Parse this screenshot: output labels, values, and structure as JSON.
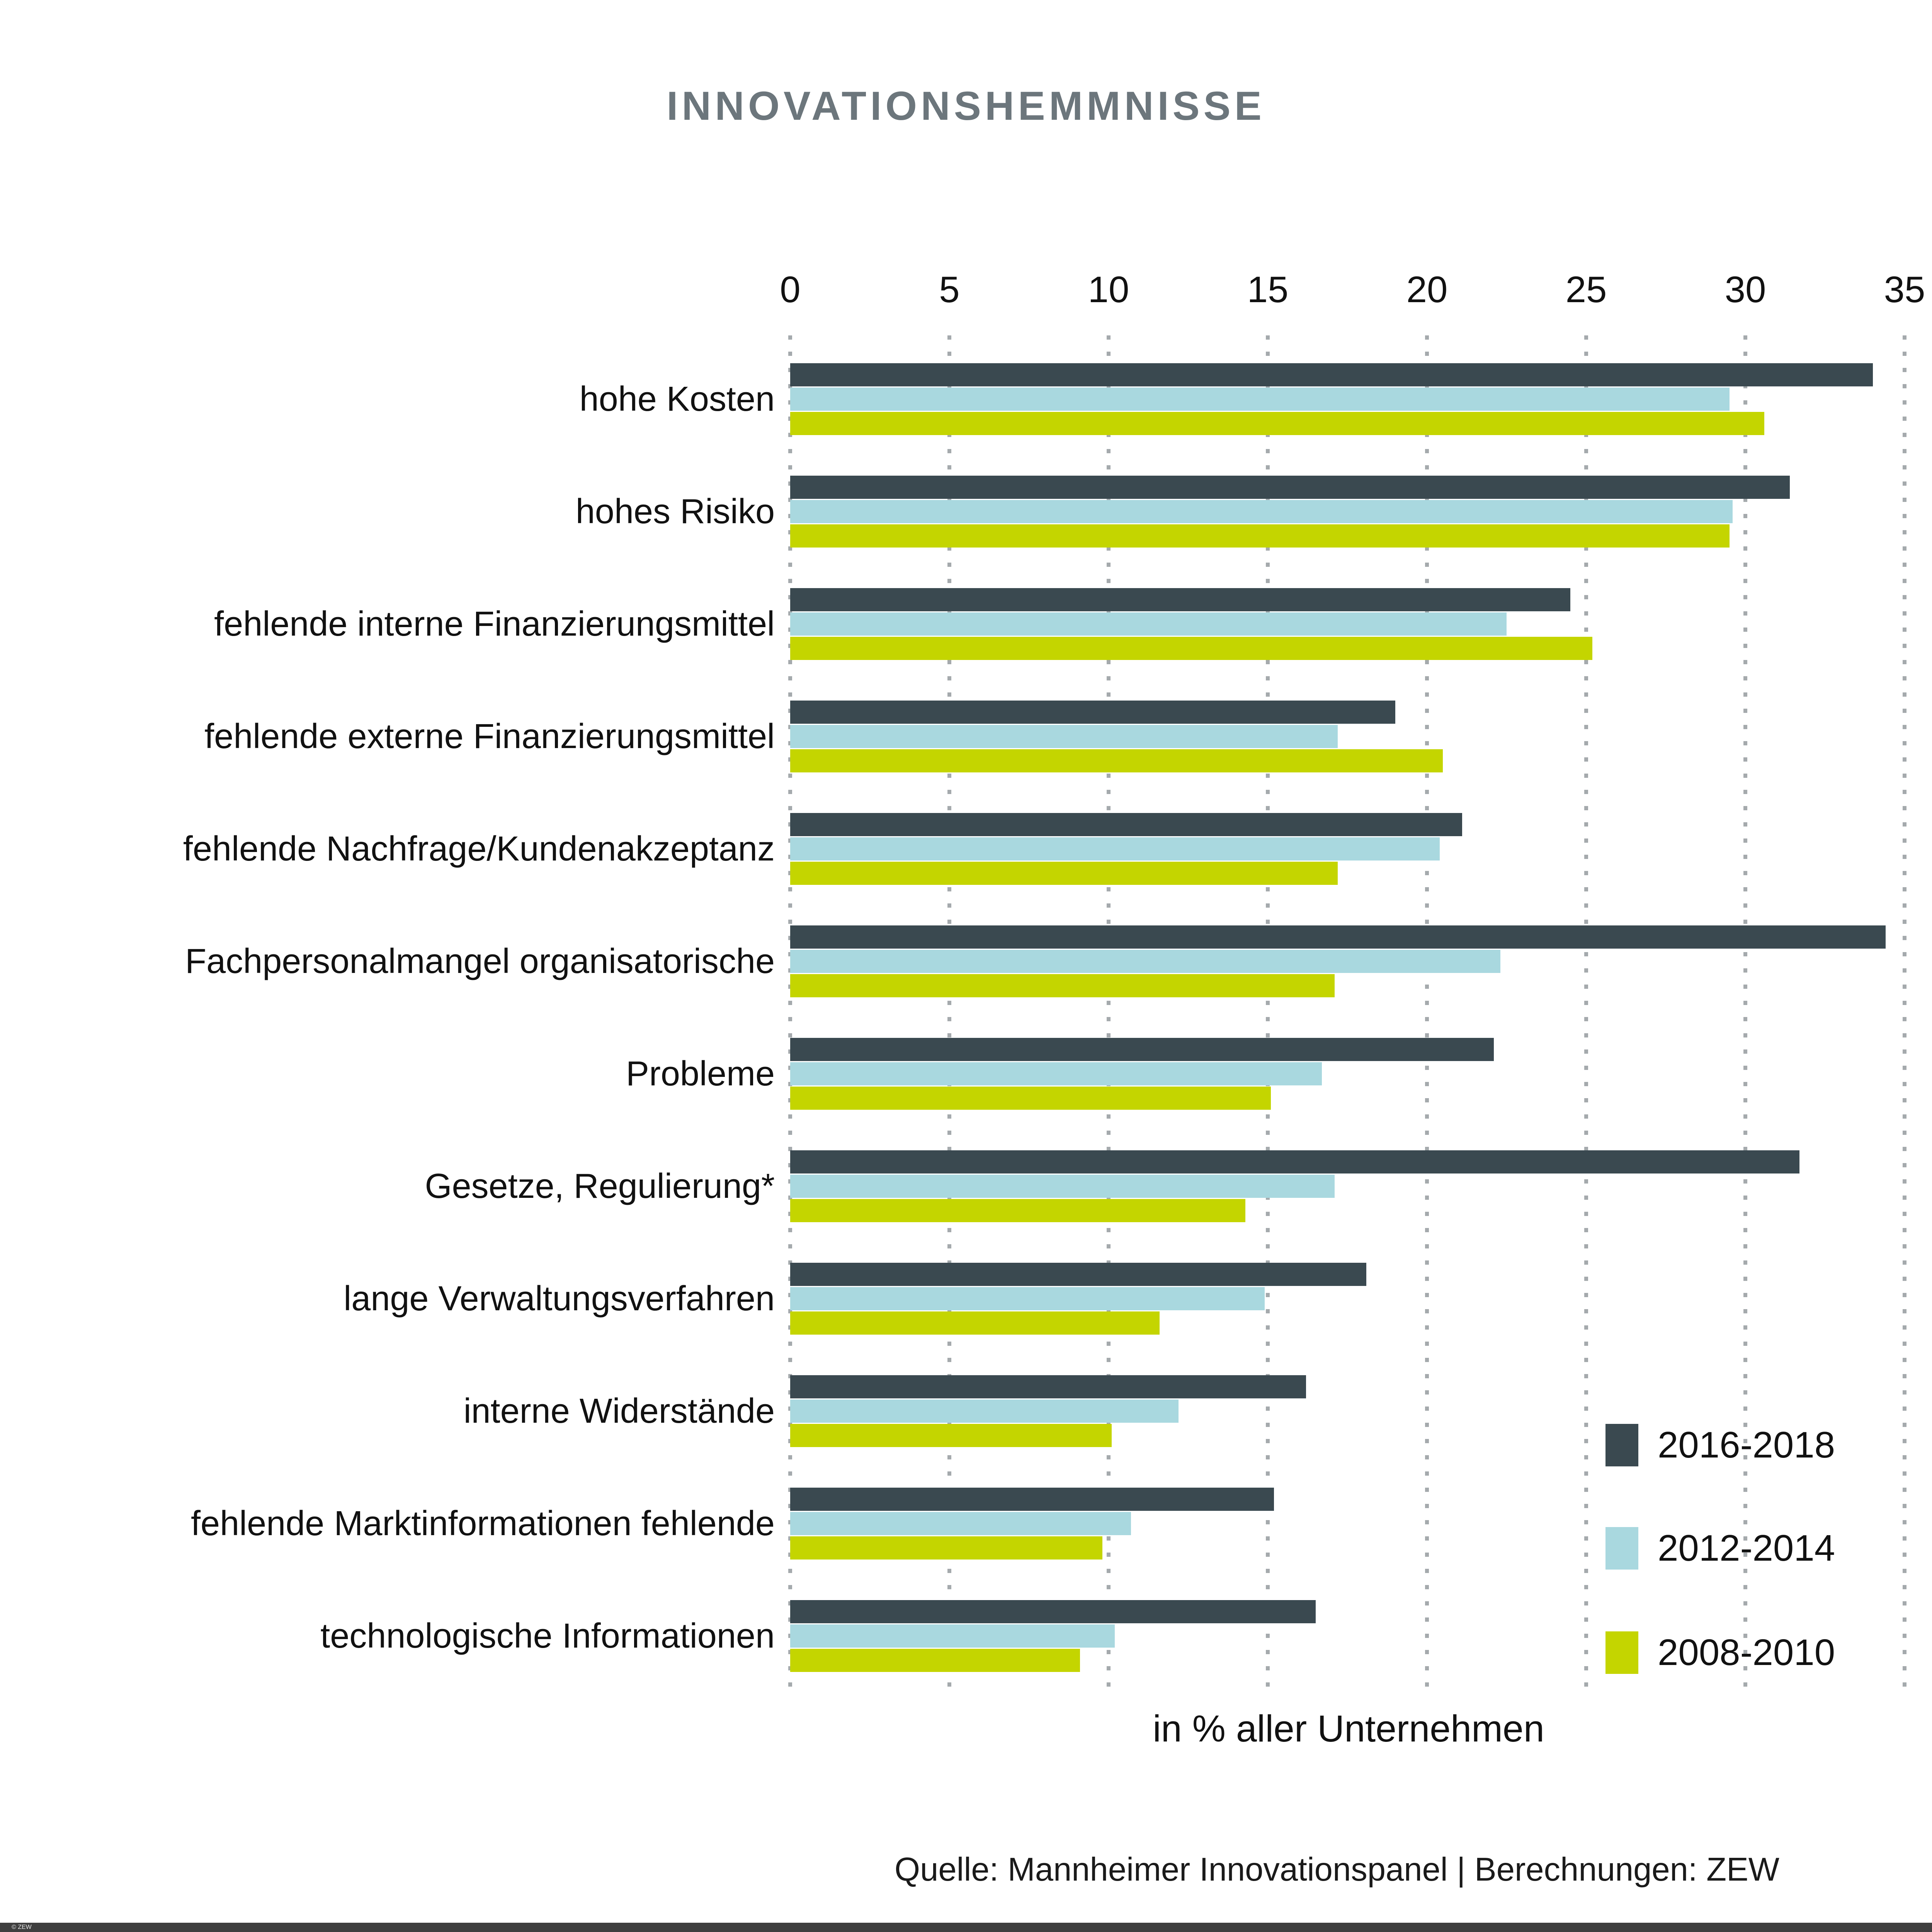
{
  "title": "INNOVATIONSHEMMNISSE",
  "axis": {
    "label": "in % aller Unternehmen",
    "ticks": [
      0,
      5,
      10,
      15,
      20,
      25,
      30,
      35
    ],
    "xlim": [
      0,
      35
    ]
  },
  "legend": [
    {
      "label": "2016-2018",
      "color": "#3A4950"
    },
    {
      "label": "2012-2014",
      "color": "#A9D8DF"
    },
    {
      "label": "2008-2010",
      "color": "#C4D500"
    }
  ],
  "source": "Quelle: Mannheimer Innovationspanel | Berechnungen: ZEW",
  "footer": {
    "copyright": "© ZEW"
  },
  "colors": {
    "series_2016_2018": "#3A4950",
    "series_2012_2014": "#A9D8DF",
    "series_2008_2010": "#C4D500",
    "title_text": "#6C767C",
    "gridline": "#A5AAAD",
    "footer_bar": "#3F3F3F",
    "background": "#FFFFFF"
  },
  "chart_data": {
    "type": "bar",
    "orientation": "horizontal",
    "title": "INNOVATIONSHEMMNISSE",
    "xlabel": "in % aller Unternehmen",
    "xlim": [
      0,
      35
    ],
    "ticks": [
      0,
      5,
      10,
      15,
      20,
      25,
      30,
      35
    ],
    "grid": "dotted-vertical",
    "legend_position": "right-bottom",
    "categories": [
      "hohe Kosten",
      "hohes Risiko",
      "fehlende interne Finanzierungsmittel",
      "fehlende externe Finanzierungsmittel",
      "fehlende Nachfrage/Kundenakzeptanz",
      "Fachpersonalmangel organisatorische",
      "Probleme",
      "Gesetze, Regulierung*",
      "lange Verwaltungsverfahren",
      "interne Widerstände",
      "fehlende Marktinformationen fehlende",
      "technologische Informationen"
    ],
    "series": [
      {
        "name": "2016-2018",
        "color": "#3A4950",
        "values": [
          34.0,
          31.4,
          24.5,
          19.0,
          21.1,
          34.4,
          22.1,
          31.7,
          18.1,
          16.2,
          15.2,
          16.5
        ]
      },
      {
        "name": "2012-2014",
        "color": "#A9D8DF",
        "values": [
          29.5,
          29.6,
          22.5,
          17.2,
          20.4,
          22.3,
          16.7,
          17.1,
          14.9,
          12.2,
          10.7,
          10.2
        ]
      },
      {
        "name": "2008-2010",
        "color": "#C4D500",
        "values": [
          30.6,
          29.5,
          25.2,
          20.5,
          17.2,
          17.1,
          15.1,
          14.3,
          11.6,
          10.1,
          9.8,
          9.1
        ]
      }
    ]
  }
}
